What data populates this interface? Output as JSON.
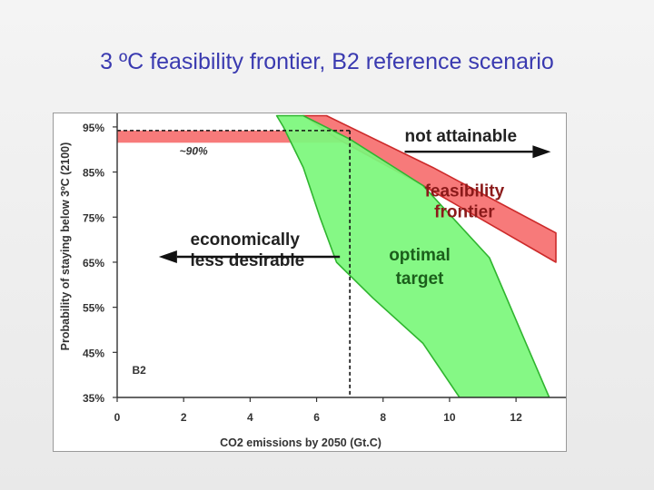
{
  "slide": {
    "title": "3 ºC feasibility frontier, B2 reference scenario"
  },
  "colors": {
    "title": "#3a3ab0",
    "feasibility_band_fill": "#f77a7a",
    "feasibility_band_edge": "#cc2a2a",
    "optimal_band_fill": "#7cf87c",
    "optimal_band_edge": "#2fb52f",
    "dark_text": "#222222",
    "feasibility_text": "#8b1a1a",
    "optimal_text": "#1b5e1b"
  },
  "chart_data": {
    "type": "area",
    "xlabel": "CO2 emissions by 2050 (Gt.C)",
    "ylabel": "Probability of staying below 3ºC (2100)",
    "xlim": [
      0,
      13.5
    ],
    "ylim": [
      35,
      98
    ],
    "x_ticks": [
      0,
      2,
      4,
      6,
      8,
      10,
      12
    ],
    "x_tick_labels": [
      "0",
      "2",
      "4",
      "6",
      "8",
      "10",
      "12"
    ],
    "y_ticks": [
      35,
      45,
      55,
      65,
      75,
      85,
      95
    ],
    "y_tick_labels": [
      "35%",
      "45%",
      "55%",
      "65%",
      "75%",
      "85%",
      "95%"
    ],
    "grid": false,
    "series": [
      {
        "fill": "feasibility_band_fill",
        "edge": "feasibility_band_edge",
        "polygon": [
          [
            5.6,
            97.5
          ],
          [
            6.3,
            97.5
          ],
          [
            9.5,
            86
          ],
          [
            13.2,
            71.5
          ],
          [
            13.2,
            65
          ],
          [
            9.2,
            82
          ],
          [
            6.6,
            92.5
          ]
        ]
      },
      {
        "fill": "optimal_band_fill",
        "edge": "optimal_band_edge",
        "polygon": [
          [
            4.8,
            97.5
          ],
          [
            5.6,
            97.5
          ],
          [
            7.0,
            92.3
          ],
          [
            9.2,
            82
          ],
          [
            11.2,
            66
          ],
          [
            12.3,
            47
          ],
          [
            13.0,
            35
          ],
          [
            10.3,
            35
          ],
          [
            9.2,
            47
          ],
          [
            7.7,
            57
          ],
          [
            6.6,
            65
          ],
          [
            6.1,
            75
          ],
          [
            5.6,
            86
          ],
          [
            5.0,
            95
          ]
        ]
      }
    ],
    "highlight_band": {
      "y_from": 91.5,
      "y_to": 94.2,
      "x_from": 0,
      "x_to": 7.0,
      "fill": "#f77a7a"
    },
    "reference_lines": [
      {
        "orientation": "horizontal",
        "y": 94.2,
        "x_from": 0,
        "x_to": 7.0,
        "style": "dashed"
      },
      {
        "orientation": "vertical",
        "x": 7.0,
        "y_from": 35,
        "y_to": 94.2,
        "style": "dashed"
      }
    ],
    "annotations": {
      "approx": "~90%",
      "scenario": "B2",
      "not_attainable": "not attainable",
      "feasibility": [
        "feasibility",
        "frontier"
      ],
      "less_desirable": [
        "economically",
        "less desirable"
      ],
      "optimal": [
        "optimal",
        "target"
      ]
    }
  }
}
